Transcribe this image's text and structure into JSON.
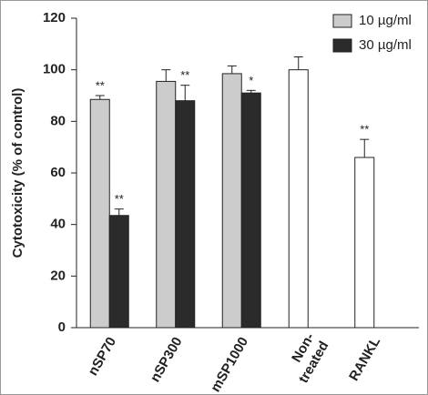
{
  "chart_data": {
    "type": "bar",
    "categories": [
      "nSP70",
      "nSP300",
      "mSP1000",
      [
        "Non-",
        "treated"
      ],
      "RANKL"
    ],
    "y_label": "Cytotoxicity (% of control)",
    "series": [
      {
        "name": "10 µg/ml",
        "color": "#cccccc",
        "values": [
          88.5,
          95.5,
          98.5,
          null,
          null
        ],
        "errors": [
          1.5,
          4.5,
          3,
          null,
          null
        ],
        "markers": [
          "**",
          null,
          null,
          null,
          null
        ]
      },
      {
        "name": "30 µg/ml",
        "color": "#2b2b2b",
        "values": [
          43.5,
          88,
          91,
          null,
          null
        ],
        "errors": [
          2.5,
          6,
          1,
          null,
          null
        ],
        "markers": [
          "**",
          "**",
          "*",
          null,
          null
        ]
      },
      {
        "color": "#ffffff",
        "values": [
          null,
          null,
          null,
          100,
          66
        ],
        "errors": [
          null,
          null,
          null,
          5,
          7
        ],
        "markers": [
          null,
          null,
          null,
          null,
          "**"
        ]
      }
    ],
    "ylim": [
      0,
      120
    ],
    "yticks": [
      0,
      20,
      40,
      60,
      80,
      100,
      120
    ],
    "legend": "top-right"
  }
}
